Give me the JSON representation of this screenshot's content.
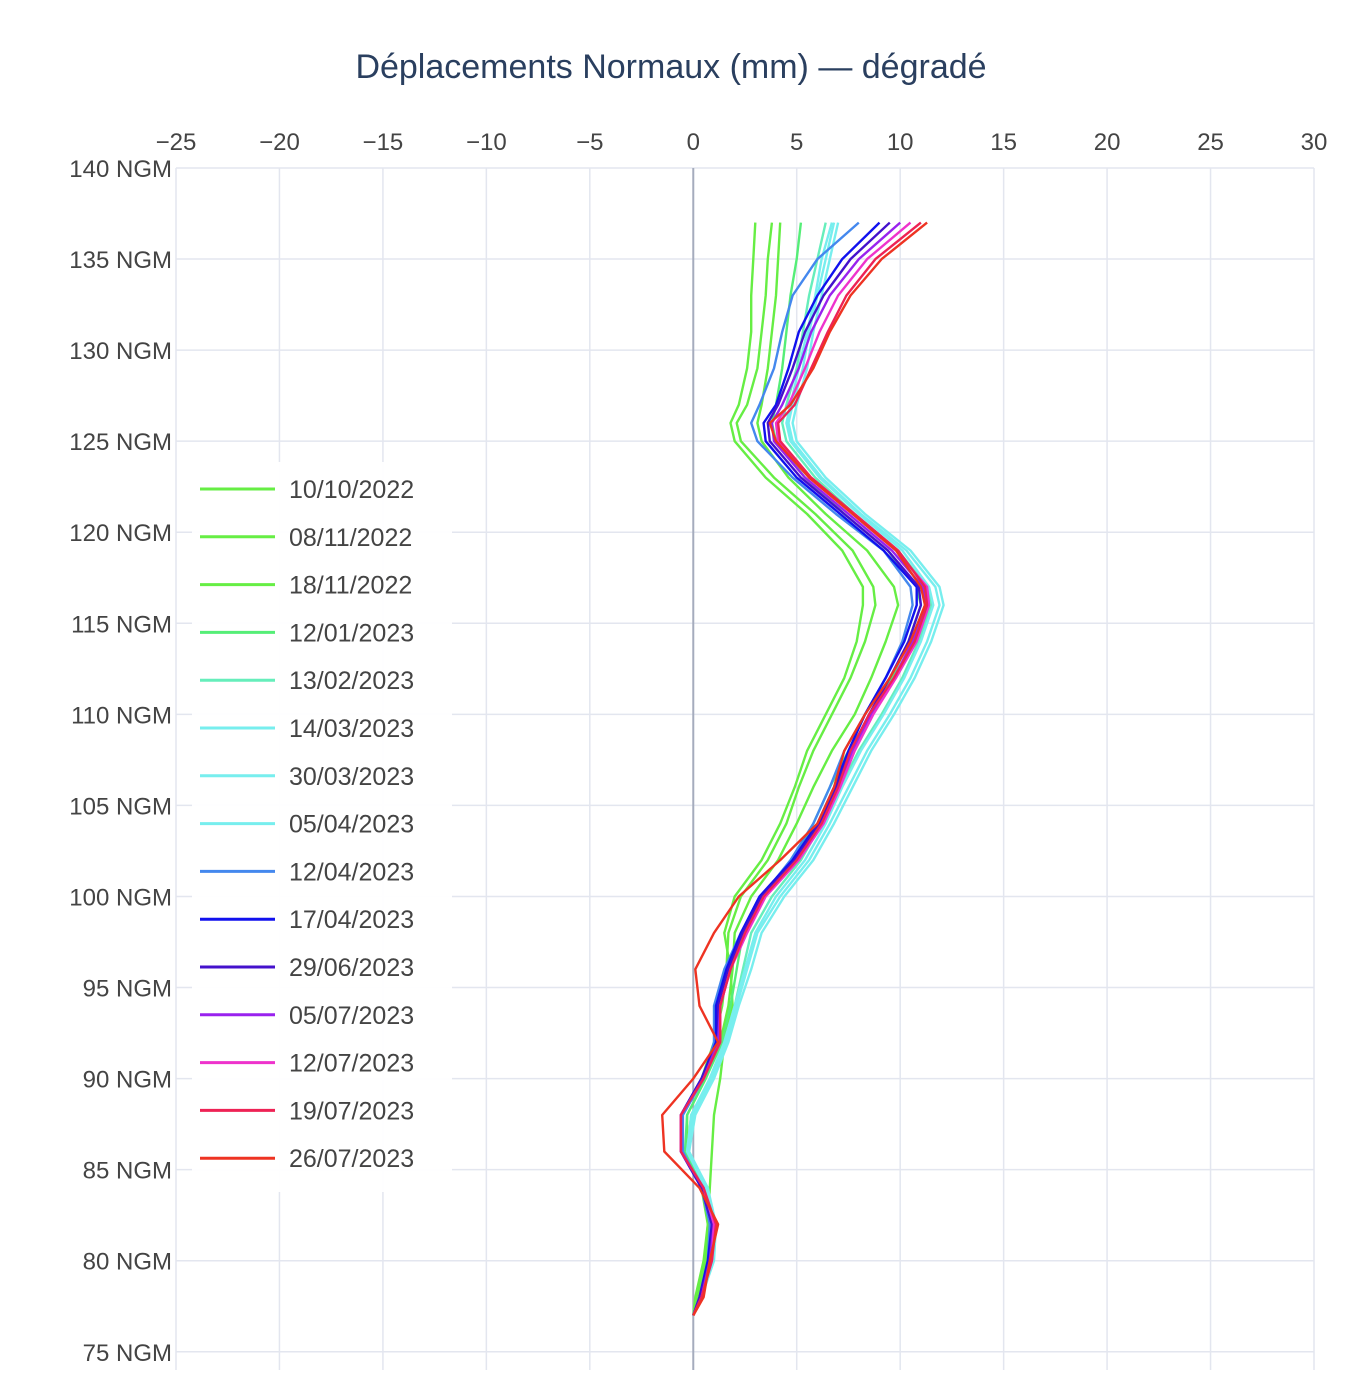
{
  "chart_data": {
    "type": "line",
    "title": "Déplacements Normaux (mm) — dégradé",
    "xlabel": "",
    "ylabel": "",
    "x_axis_position": "top",
    "xlim": [
      -25,
      30
    ],
    "ylim": [
      74,
      140
    ],
    "x_ticks": [
      -25,
      -20,
      -15,
      -10,
      -5,
      0,
      5,
      10,
      15,
      20,
      25,
      30
    ],
    "x_tick_labels": [
      "−25",
      "−20",
      "−15",
      "−10",
      "−5",
      "0",
      "5",
      "10",
      "15",
      "20",
      "25",
      "30"
    ],
    "y_ticks": [
      75,
      80,
      85,
      90,
      95,
      100,
      105,
      110,
      115,
      120,
      125,
      130,
      135,
      140
    ],
    "y_tick_labels": [
      "75 NGM",
      "80 NGM",
      "85 NGM",
      "90 NGM",
      "95 NGM",
      "100 NGM",
      "105 NGM",
      "110 NGM",
      "115 NGM",
      "120 NGM",
      "125 NGM",
      "130 NGM",
      "135 NGM",
      "140 NGM"
    ],
    "grid": true,
    "zero_line": true,
    "legend_position": "left-middle",
    "depths": [
      137,
      135,
      133,
      131,
      129,
      127,
      126,
      125,
      123,
      121,
      119,
      117,
      116,
      114,
      112,
      110,
      108,
      106,
      104,
      102,
      100,
      98,
      96,
      94,
      92,
      90,
      88,
      86,
      84,
      82,
      80,
      78,
      77
    ],
    "series": [
      {
        "name": "10/10/2022",
        "color": "#66ee44",
        "values": [
          3.0,
          2.9,
          2.8,
          2.8,
          2.6,
          2.2,
          1.8,
          2.0,
          3.5,
          5.5,
          7.2,
          8.2,
          8.2,
          7.9,
          7.3,
          6.4,
          5.5,
          4.9,
          4.2,
          3.3,
          2.0,
          1.5,
          1.8,
          1.9,
          1.5,
          1.3,
          1.0,
          0.9,
          0.8,
          0.7,
          0.5,
          0.1,
          0.0
        ]
      },
      {
        "name": "08/11/2022",
        "color": "#66ee44",
        "values": [
          3.8,
          3.6,
          3.5,
          3.3,
          3.1,
          2.6,
          2.1,
          2.3,
          3.9,
          5.9,
          7.7,
          8.7,
          8.8,
          8.3,
          7.6,
          6.7,
          5.8,
          5.1,
          4.5,
          3.6,
          2.3,
          1.7,
          1.6,
          1.4,
          1.0,
          0.4,
          -0.6,
          -0.5,
          0.4,
          0.7,
          0.6,
          0.2,
          0.0
        ]
      },
      {
        "name": "18/11/2022",
        "color": "#66ee44",
        "values": [
          4.2,
          4.1,
          4.0,
          3.8,
          3.6,
          3.3,
          3.1,
          3.3,
          4.6,
          6.4,
          8.4,
          9.7,
          9.9,
          9.3,
          8.6,
          7.8,
          6.7,
          5.8,
          5.0,
          4.1,
          2.8,
          2.0,
          1.9,
          1.7,
          1.3,
          0.6,
          -0.3,
          -0.3,
          0.5,
          0.8,
          0.7,
          0.2,
          0.0
        ]
      },
      {
        "name": "12/01/2023",
        "color": "#55ee77",
        "values": [
          5.2,
          5.0,
          4.7,
          4.5,
          4.3,
          4.0,
          3.8,
          4.0,
          5.4,
          7.3,
          9.4,
          10.8,
          11.0,
          10.4,
          9.6,
          8.6,
          7.5,
          6.6,
          5.8,
          4.8,
          3.4,
          2.4,
          2.1,
          1.8,
          1.4,
          0.6,
          -0.3,
          -0.4,
          0.5,
          0.9,
          0.8,
          0.3,
          0.0
        ]
      },
      {
        "name": "13/02/2023",
        "color": "#66eebb",
        "values": [
          6.4,
          6.0,
          5.6,
          5.3,
          5.0,
          4.5,
          4.3,
          4.5,
          5.9,
          7.8,
          9.9,
          11.3,
          11.5,
          10.9,
          10.1,
          9.1,
          8.0,
          7.1,
          6.2,
          5.2,
          3.8,
          2.8,
          2.4,
          2.0,
          1.5,
          0.8,
          -0.1,
          -0.3,
          0.6,
          1.0,
          0.9,
          0.3,
          0.0
        ]
      },
      {
        "name": "14/03/2023",
        "color": "#77eeee",
        "values": [
          6.8,
          6.4,
          6.0,
          5.6,
          5.3,
          4.8,
          4.6,
          4.8,
          6.2,
          8.1,
          10.3,
          11.7,
          11.9,
          11.3,
          10.5,
          9.5,
          8.4,
          7.5,
          6.6,
          5.6,
          4.2,
          3.1,
          2.6,
          2.1,
          1.6,
          0.9,
          0.0,
          -0.3,
          0.6,
          1.0,
          0.9,
          0.4,
          0.0
        ]
      },
      {
        "name": "30/03/2023",
        "color": "#77eeee",
        "values": [
          7.0,
          6.6,
          6.2,
          5.8,
          5.5,
          5.0,
          4.8,
          5.0,
          6.4,
          8.3,
          10.5,
          11.9,
          12.1,
          11.5,
          10.7,
          9.7,
          8.6,
          7.7,
          6.8,
          5.8,
          4.4,
          3.3,
          2.8,
          2.2,
          1.7,
          1.0,
          0.1,
          -0.2,
          0.7,
          1.1,
          1.0,
          0.4,
          0.0
        ]
      },
      {
        "name": "05/04/2023",
        "color": "#77eeee",
        "values": [
          6.7,
          6.2,
          5.9,
          5.5,
          5.1,
          4.7,
          4.5,
          4.7,
          6.1,
          8.0,
          10.1,
          11.4,
          11.6,
          11.0,
          10.2,
          9.2,
          8.1,
          7.2,
          6.4,
          5.4,
          4.0,
          3.0,
          2.5,
          2.0,
          1.5,
          0.8,
          -0.1,
          -0.3,
          0.6,
          1.0,
          0.9,
          0.3,
          0.0
        ]
      },
      {
        "name": "12/04/2023",
        "color": "#4488ee",
        "values": [
          8.0,
          6.0,
          4.8,
          4.3,
          3.9,
          3.2,
          2.8,
          3.1,
          4.8,
          6.9,
          9.2,
          10.5,
          10.6,
          10.1,
          9.3,
          8.3,
          7.3,
          6.6,
          5.8,
          4.7,
          3.3,
          2.3,
          1.5,
          1.0,
          1.0,
          0.5,
          -0.5,
          -0.5,
          0.4,
          0.8,
          0.7,
          0.3,
          0.0
        ]
      },
      {
        "name": "17/04/2023",
        "color": "#1111ee",
        "values": [
          9.0,
          7.2,
          6.0,
          5.1,
          4.6,
          4.0,
          3.4,
          3.5,
          5.0,
          7.1,
          9.2,
          10.8,
          10.8,
          10.2,
          9.3,
          8.3,
          7.5,
          6.8,
          6.0,
          4.8,
          3.2,
          2.3,
          1.6,
          1.1,
          1.1,
          0.4,
          -0.6,
          -0.6,
          0.4,
          0.9,
          0.7,
          0.3,
          0.0
        ]
      },
      {
        "name": "29/06/2023",
        "color": "#4411cc",
        "values": [
          9.5,
          7.6,
          6.3,
          5.4,
          4.8,
          4.1,
          3.6,
          3.7,
          5.2,
          7.3,
          9.4,
          10.9,
          11.0,
          10.4,
          9.5,
          8.5,
          7.6,
          6.9,
          6.1,
          4.9,
          3.3,
          2.4,
          1.7,
          1.2,
          1.2,
          0.4,
          -0.6,
          -0.6,
          0.4,
          0.9,
          0.8,
          0.3,
          0.0
        ]
      },
      {
        "name": "05/07/2023",
        "color": "#9922ee",
        "values": [
          10.0,
          8.0,
          6.6,
          5.7,
          5.1,
          4.3,
          3.8,
          3.9,
          5.4,
          7.5,
          9.6,
          11.1,
          11.2,
          10.6,
          9.7,
          8.6,
          7.7,
          7.0,
          6.2,
          5.0,
          3.4,
          2.5,
          1.8,
          1.3,
          1.2,
          0.5,
          -0.6,
          -0.6,
          0.5,
          1.0,
          0.8,
          0.4,
          0.0
        ]
      },
      {
        "name": "12/07/2023",
        "color": "#ee33cc",
        "values": [
          10.5,
          8.4,
          7.0,
          6.1,
          5.4,
          4.6,
          4.0,
          4.1,
          5.6,
          7.7,
          9.8,
          11.3,
          11.4,
          10.8,
          9.8,
          8.7,
          7.8,
          7.1,
          6.3,
          5.1,
          3.5,
          2.6,
          1.8,
          1.3,
          1.3,
          0.5,
          -0.6,
          -0.6,
          0.5,
          1.0,
          0.9,
          0.4,
          0.0
        ]
      },
      {
        "name": "19/07/2023",
        "color": "#ee2255",
        "values": [
          11.0,
          8.8,
          7.4,
          6.5,
          5.7,
          4.9,
          4.1,
          4.2,
          5.7,
          7.8,
          9.9,
          11.2,
          11.3,
          10.7,
          9.7,
          8.5,
          7.6,
          7.0,
          6.2,
          5.0,
          3.4,
          2.5,
          1.8,
          1.3,
          1.3,
          0.5,
          -0.6,
          -0.6,
          0.5,
          1.1,
          0.9,
          0.4,
          0.0
        ]
      },
      {
        "name": "26/07/2023",
        "color": "#ee3322",
        "values": [
          11.3,
          9.1,
          7.6,
          6.6,
          5.8,
          4.7,
          3.7,
          4.0,
          5.6,
          7.7,
          9.8,
          11.0,
          11.2,
          10.5,
          9.5,
          8.3,
          7.3,
          6.8,
          6.0,
          4.2,
          2.2,
          1.0,
          0.1,
          0.3,
          1.2,
          0.0,
          -1.5,
          -1.4,
          0.3,
          1.2,
          0.8,
          0.5,
          0.0
        ]
      }
    ]
  }
}
